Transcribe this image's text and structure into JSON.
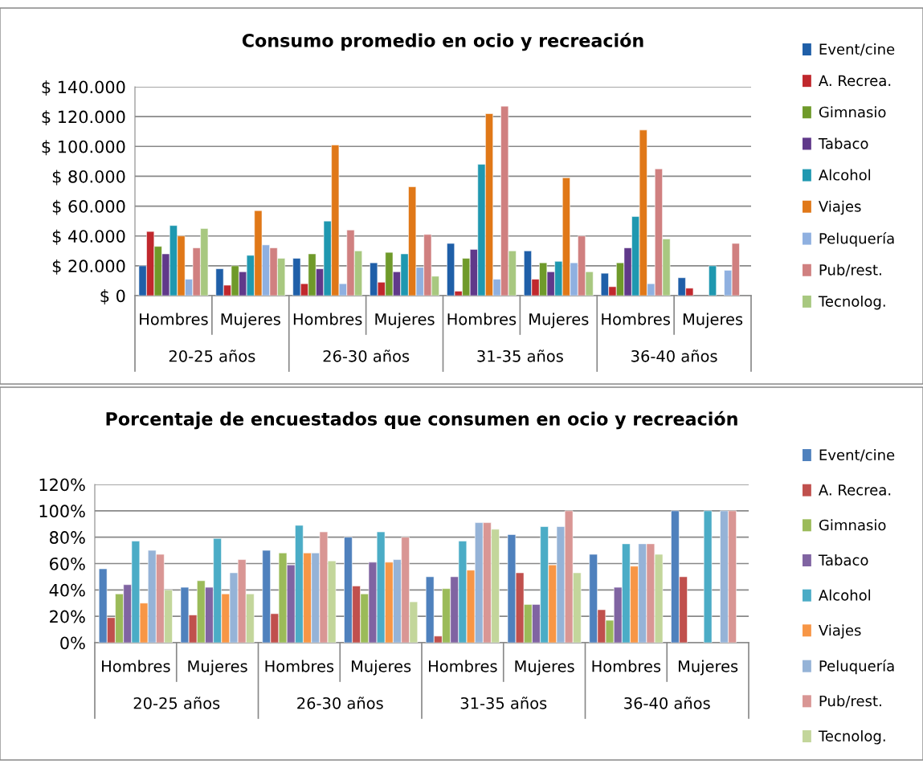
{
  "chart_data": [
    {
      "type": "bar",
      "title": "Consumo promedio en ocio y recreación",
      "categories": [
        "Hombres",
        "Mujeres",
        "Hombres",
        "Mujeres",
        "Hombres",
        "Mujeres",
        "Hombres",
        "Mujeres"
      ],
      "annotations": [
        "20-25 años",
        "26-30 años",
        "31-35 años",
        "36-40 años"
      ],
      "ylim": [
        0,
        140000
      ],
      "yticks": [
        {
          "value": 0,
          "label": "$ 0"
        },
        {
          "value": 20000,
          "label": "$ 20.000"
        },
        {
          "value": 40000,
          "label": "$ 40.000"
        },
        {
          "value": 60000,
          "label": "$ 60.000"
        },
        {
          "value": 80000,
          "label": "$ 80.000"
        },
        {
          "value": 100000,
          "label": "$ 100.000"
        },
        {
          "value": 120000,
          "label": "$ 120.000"
        },
        {
          "value": 140000,
          "label": "$ 140.000"
        }
      ],
      "grid": "y",
      "legend": "right",
      "series": [
        {
          "name": "Event/cine",
          "color": "#1f5fa8",
          "values": [
            20000,
            18000,
            25000,
            22000,
            35000,
            30000,
            15000,
            12000
          ]
        },
        {
          "name": "A. Recrea.",
          "color": "#c0282d",
          "values": [
            43000,
            7000,
            8000,
            9000,
            3000,
            11000,
            6000,
            5000
          ]
        },
        {
          "name": "Gimnasio",
          "color": "#6f9a2a",
          "values": [
            33000,
            20000,
            28000,
            29000,
            25000,
            22000,
            22000,
            null
          ]
        },
        {
          "name": "Tabaco",
          "color": "#60398a",
          "values": [
            28000,
            16000,
            18000,
            16000,
            31000,
            16000,
            32000,
            null
          ]
        },
        {
          "name": "Alcohol",
          "color": "#1f98b0",
          "values": [
            47000,
            27000,
            50000,
            28000,
            88000,
            23000,
            53000,
            20000
          ]
        },
        {
          "name": "Viajes",
          "color": "#e07818",
          "values": [
            40000,
            57000,
            101000,
            73000,
            122000,
            79000,
            111000,
            null
          ]
        },
        {
          "name": "Peluquería",
          "color": "#8fb0e0",
          "values": [
            11000,
            34000,
            8000,
            19000,
            11000,
            22000,
            8000,
            17000
          ]
        },
        {
          "name": "Pub/rest.",
          "color": "#d08080",
          "values": [
            32000,
            32000,
            44000,
            41000,
            127000,
            40000,
            85000,
            35000
          ]
        },
        {
          "name": "Tecnolog.",
          "color": "#a8c880",
          "values": [
            45000,
            25000,
            30000,
            13000,
            30000,
            16000,
            38000,
            null
          ]
        }
      ]
    },
    {
      "type": "bar",
      "title": "Porcentaje de encuestados que consumen en ocio y recreación",
      "categories": [
        "Hombres",
        "Mujeres",
        "Hombres",
        "Mujeres",
        "Hombres",
        "Mujeres",
        "Hombres",
        "Mujeres"
      ],
      "annotations": [
        "20-25 años",
        "26-30 años",
        "31-35 años",
        "36-40 años"
      ],
      "ylim": [
        0,
        120
      ],
      "yticks": [
        {
          "value": 0,
          "label": "0%"
        },
        {
          "value": 20,
          "label": "20%"
        },
        {
          "value": 40,
          "label": "40%"
        },
        {
          "value": 60,
          "label": "60%"
        },
        {
          "value": 80,
          "label": "80%"
        },
        {
          "value": 100,
          "label": "100%"
        },
        {
          "value": 120,
          "label": "120%"
        }
      ],
      "grid": "y",
      "legend": "right",
      "series": [
        {
          "name": "Event/cine",
          "color": "#4f81bd",
          "values": [
            56,
            42,
            70,
            80,
            50,
            82,
            67,
            100
          ]
        },
        {
          "name": "A. Recrea.",
          "color": "#c0504d",
          "values": [
            19,
            21,
            22,
            43,
            5,
            53,
            25,
            50
          ]
        },
        {
          "name": "Gimnasio",
          "color": "#9bbb59",
          "values": [
            37,
            47,
            68,
            37,
            41,
            29,
            17,
            null
          ]
        },
        {
          "name": "Tabaco",
          "color": "#8064a2",
          "values": [
            44,
            42,
            59,
            61,
            50,
            29,
            42,
            null
          ]
        },
        {
          "name": "Alcohol",
          "color": "#4bacc6",
          "values": [
            77,
            79,
            89,
            84,
            77,
            88,
            75,
            100
          ]
        },
        {
          "name": "Viajes",
          "color": "#f79646",
          "values": [
            30,
            37,
            68,
            61,
            55,
            59,
            58,
            null
          ]
        },
        {
          "name": "Peluquería",
          "color": "#95b3d7",
          "values": [
            70,
            53,
            68,
            63,
            91,
            88,
            75,
            100
          ]
        },
        {
          "name": "Pub/rest.",
          "color": "#d99694",
          "values": [
            67,
            63,
            84,
            80,
            91,
            100,
            75,
            100
          ]
        },
        {
          "name": "Tecnolog.",
          "color": "#c3d69b",
          "values": [
            40,
            37,
            62,
            31,
            86,
            53,
            67,
            null
          ]
        }
      ]
    }
  ]
}
